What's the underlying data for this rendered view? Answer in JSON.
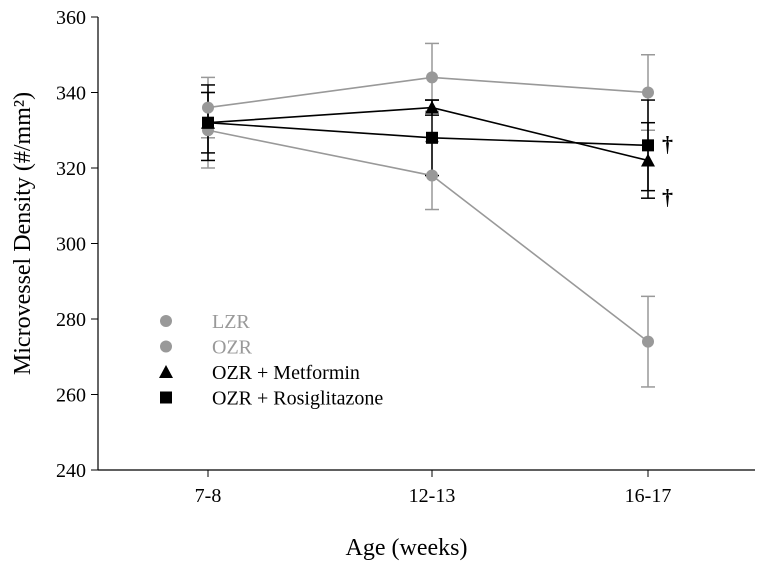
{
  "chart_data": {
    "type": "line",
    "title": "",
    "xlabel": "Age (weeks)",
    "ylabel": "Microvessel Density (#/mm²)",
    "ylim": [
      240,
      360
    ],
    "yticks": [
      240,
      260,
      280,
      300,
      320,
      340,
      360
    ],
    "categories": [
      "7-8",
      "12-13",
      "16-17"
    ],
    "legend_position": "bottom-left",
    "series": [
      {
        "name": "LZR",
        "marker": "circle",
        "color": "#999999",
        "values": [
          336,
          344,
          340
        ],
        "errors": [
          8,
          9,
          10
        ]
      },
      {
        "name": "OZR",
        "marker": "circle",
        "color": "#999999",
        "values": [
          330,
          318,
          274
        ],
        "errors": [
          10,
          9,
          12
        ]
      },
      {
        "name": "OZR + Metformin",
        "marker": "triangle",
        "color": "#000000",
        "values": [
          332,
          336,
          322
        ],
        "errors": [
          10,
          2,
          10
        ]
      },
      {
        "name": "OZR + Rosiglitazone",
        "marker": "square",
        "color": "#000000",
        "values": [
          332,
          328,
          326
        ],
        "errors": [
          8,
          10,
          12
        ]
      }
    ],
    "annotations": [
      {
        "text": "†",
        "category": "16-17",
        "series": "OZR + Rosiglitazone"
      },
      {
        "text": "†",
        "category": "16-17",
        "series": "OZR + Metformin"
      }
    ]
  }
}
